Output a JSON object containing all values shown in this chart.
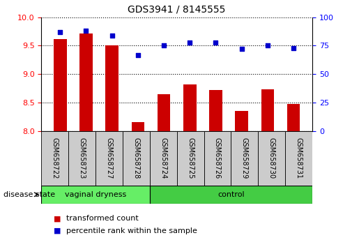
{
  "title": "GDS3941 / 8145555",
  "samples": [
    "GSM658722",
    "GSM658723",
    "GSM658727",
    "GSM658728",
    "GSM658724",
    "GSM658725",
    "GSM658726",
    "GSM658729",
    "GSM658730",
    "GSM658731"
  ],
  "bar_values": [
    9.62,
    9.72,
    9.5,
    8.15,
    8.65,
    8.82,
    8.72,
    8.35,
    8.73,
    8.47
  ],
  "dot_values": [
    87,
    88,
    84,
    67,
    75,
    78,
    78,
    72,
    75,
    73
  ],
  "bar_color": "#cc0000",
  "dot_color": "#0000cc",
  "ymin": 8.0,
  "ymax": 10.0,
  "yticks": [
    8.0,
    8.5,
    9.0,
    9.5,
    10.0
  ],
  "y2min": 0,
  "y2max": 100,
  "y2ticks": [
    0,
    25,
    50,
    75,
    100
  ],
  "groups": [
    {
      "label": "vaginal dryness",
      "start": 0,
      "end": 4,
      "color": "#66ee66"
    },
    {
      "label": "control",
      "start": 4,
      "end": 10,
      "color": "#44cc44"
    }
  ],
  "group_label": "disease state",
  "legend_bar": "transformed count",
  "legend_dot": "percentile rank within the sample",
  "bar_width": 0.5,
  "label_bg_color": "#dddddd",
  "tick_cell_color": "#cccccc"
}
